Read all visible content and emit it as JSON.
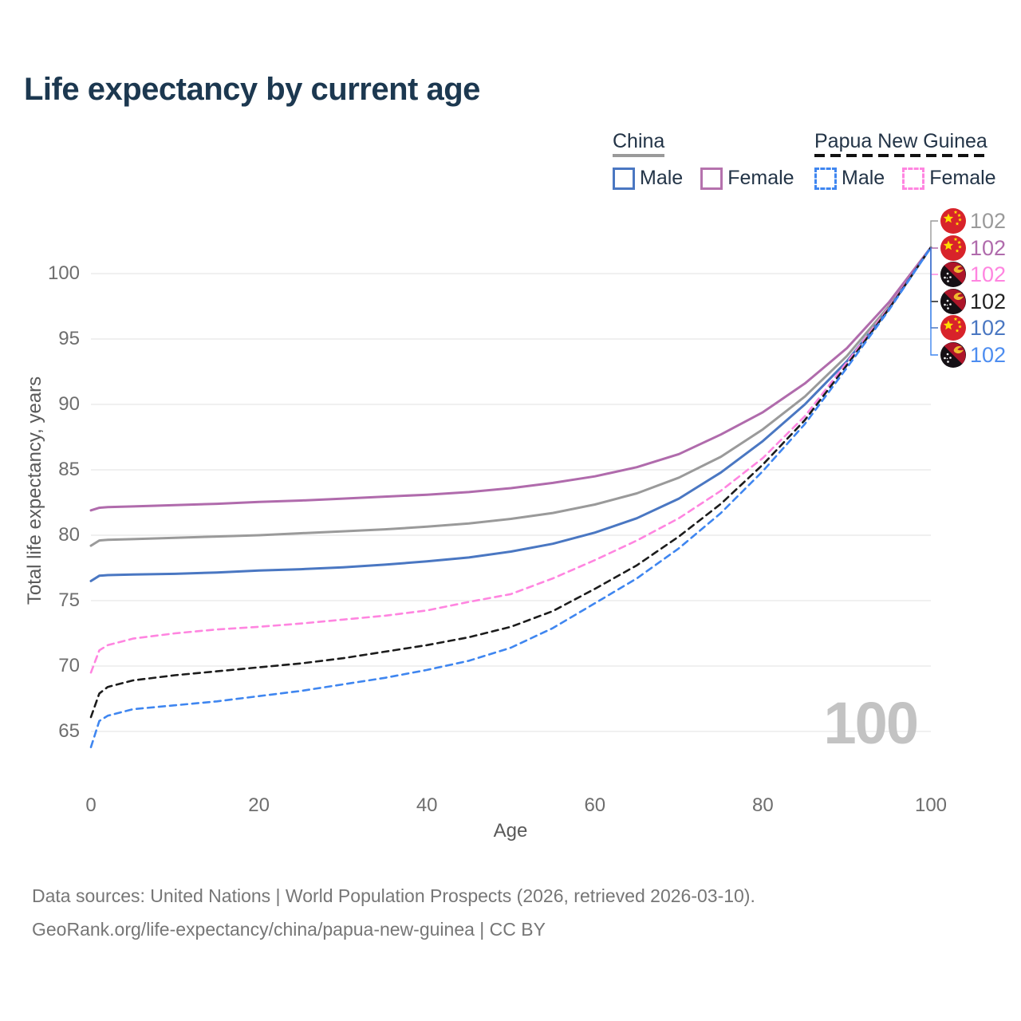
{
  "title": "Life expectancy by current age",
  "legend": {
    "china": {
      "label": "China",
      "male": "Male",
      "female": "Female",
      "style": "solid"
    },
    "png": {
      "label": "Papua New Guinea",
      "male": "Male",
      "female": "Female",
      "style": "dashed"
    }
  },
  "colors": {
    "title_text": "#1c3850",
    "legend_text": "#233447",
    "gridline": "#e7e7e7",
    "tick_text": "#6e6e6e",
    "axis_title_text": "#595959",
    "watermark_text": "#c3c3c3",
    "footer_text": "#767676",
    "china_flag_red": "#d8232a",
    "china_flag_yellow": "#ffde00",
    "png_flag_red": "#ad1529",
    "png_flag_black": "#151015",
    "png_flag_bird": "#f0b92d"
  },
  "chart_data": {
    "type": "line",
    "title": "Life expectancy by current age",
    "xlabel": "Age",
    "ylabel": "Total life expectancy, years",
    "xlim": [
      0,
      100
    ],
    "ylim": [
      63,
      103
    ],
    "x_ticks": [
      0,
      20,
      40,
      60,
      80,
      100
    ],
    "y_ticks": [
      65,
      70,
      75,
      80,
      85,
      90,
      95,
      100
    ],
    "grid": "horizontal-only",
    "legend_position": "top-right",
    "age_counter": "100",
    "x": [
      0,
      1,
      2,
      5,
      10,
      15,
      20,
      25,
      30,
      35,
      40,
      45,
      50,
      55,
      60,
      65,
      70,
      75,
      80,
      85,
      90,
      95,
      100
    ],
    "series": [
      {
        "name": "China total",
        "country": "China",
        "flag": "china",
        "color": "#9a9a9a",
        "dash": "solid",
        "end_label": "102",
        "label_row": 0,
        "values": [
          79.2,
          79.6,
          79.65,
          79.7,
          79.8,
          79.9,
          80.0,
          80.15,
          80.3,
          80.45,
          80.65,
          80.9,
          81.25,
          81.7,
          82.35,
          83.2,
          84.4,
          86.0,
          88.1,
          90.6,
          93.7,
          97.5,
          102
        ]
      },
      {
        "name": "China female",
        "country": "China",
        "flag": "china",
        "color": "#b06bac",
        "dash": "solid",
        "end_label": "102",
        "label_row": 1,
        "values": [
          81.9,
          82.1,
          82.15,
          82.2,
          82.3,
          82.4,
          82.55,
          82.65,
          82.8,
          82.95,
          83.1,
          83.3,
          83.6,
          84.0,
          84.5,
          85.2,
          86.2,
          87.7,
          89.4,
          91.6,
          94.3,
          97.8,
          102
        ]
      },
      {
        "name": "China male",
        "country": "China",
        "flag": "china",
        "color": "#4a77c2",
        "dash": "solid",
        "end_label": "102",
        "label_row": 4,
        "values": [
          76.5,
          76.9,
          76.95,
          77.0,
          77.05,
          77.15,
          77.3,
          77.4,
          77.55,
          77.75,
          78.0,
          78.3,
          78.75,
          79.35,
          80.2,
          81.3,
          82.8,
          84.8,
          87.2,
          90.0,
          93.3,
          97.3,
          102
        ]
      },
      {
        "name": "Papua New Guinea female",
        "country": "Papua New Guinea",
        "flag": "png",
        "color": "#ff85e0",
        "dash": "dashed",
        "end_label": "102",
        "label_row": 2,
        "values": [
          69.5,
          71.2,
          71.6,
          72.1,
          72.5,
          72.8,
          73.0,
          73.25,
          73.55,
          73.85,
          74.25,
          74.9,
          75.5,
          76.7,
          78.1,
          79.6,
          81.3,
          83.4,
          85.9,
          89.1,
          93.2,
          97.4,
          102
        ]
      },
      {
        "name": "Papua New Guinea total",
        "country": "Papua New Guinea",
        "flag": "png",
        "color": "#1c1c1c",
        "dash": "dashed",
        "end_label": "102",
        "label_row": 3,
        "values": [
          66.1,
          67.9,
          68.4,
          68.9,
          69.3,
          69.6,
          69.9,
          70.2,
          70.6,
          71.1,
          71.6,
          72.2,
          73.0,
          74.2,
          75.9,
          77.7,
          79.9,
          82.4,
          85.4,
          88.8,
          93.0,
          97.3,
          102
        ]
      },
      {
        "name": "Papua New Guinea male",
        "country": "Papua New Guinea",
        "flag": "png",
        "color": "#3f86f0",
        "dash": "dashed",
        "end_label": "102",
        "label_row": 5,
        "values": [
          63.8,
          65.8,
          66.2,
          66.7,
          67.0,
          67.3,
          67.7,
          68.1,
          68.6,
          69.1,
          69.7,
          70.4,
          71.4,
          72.9,
          74.8,
          76.7,
          79.0,
          81.7,
          84.9,
          88.5,
          92.8,
          97.2,
          102
        ]
      }
    ],
    "end_label_colors": [
      "#9a9a9a",
      "#b06bac",
      "#ff85e0",
      "#222222",
      "#4a77c2",
      "#4d8df0"
    ]
  },
  "footer": {
    "line1": "Data sources: United Nations | World Population Prospects (2026, retrieved 2026-03-10).",
    "line2": "GeoRank.org/life-expectancy/china/papua-new-guinea | CC BY"
  }
}
